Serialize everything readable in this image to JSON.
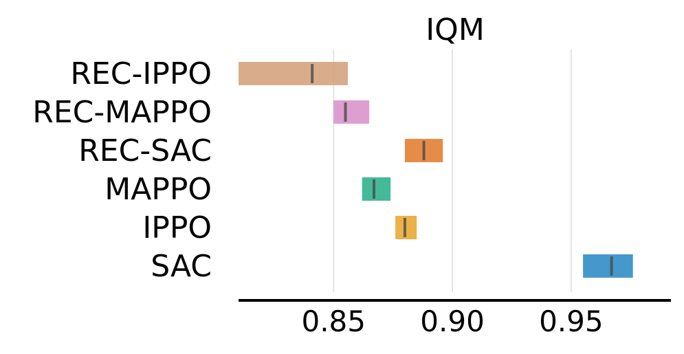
{
  "chart_data": {
    "type": "interval",
    "title": "IQM",
    "xlabel": "",
    "ylabel": "",
    "xlim": [
      0.81,
      0.992
    ],
    "xticks": [
      0.85,
      0.9,
      0.95
    ],
    "xtick_labels": [
      "0.85",
      "0.90",
      "0.95"
    ],
    "grid": "vertical",
    "series": [
      {
        "name": "REC-IPPO",
        "low": 0.81,
        "high": 0.856,
        "point": 0.841,
        "color": "#d4a27c"
      },
      {
        "name": "REC-MAPPO",
        "low": 0.85,
        "high": 0.865,
        "point": 0.855,
        "color": "#d792c9"
      },
      {
        "name": "REC-SAC",
        "low": 0.88,
        "high": 0.896,
        "point": 0.888,
        "color": "#e07c2f"
      },
      {
        "name": "MAPPO",
        "low": 0.862,
        "high": 0.874,
        "point": 0.867,
        "color": "#2ab08a"
      },
      {
        "name": "IPPO",
        "low": 0.876,
        "high": 0.885,
        "point": 0.88,
        "color": "#e9a72e"
      },
      {
        "name": "SAC",
        "low": 0.955,
        "high": 0.976,
        "point": 0.967,
        "color": "#2a8ac4"
      }
    ]
  }
}
